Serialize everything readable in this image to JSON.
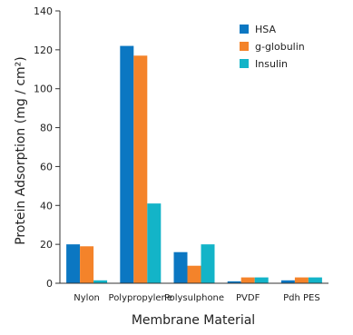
{
  "chart_data": {
    "type": "bar",
    "title": "",
    "xlabel": "Membrane Material",
    "ylabel": "Protein Adsorption (mg / cm²)",
    "ylim": [
      0,
      140
    ],
    "yticks": [
      0,
      20,
      40,
      60,
      80,
      100,
      120,
      140
    ],
    "categories": [
      "Nylon",
      "Polypropylene",
      "Polysulphone",
      "PVDF",
      "Pdh PES"
    ],
    "series": [
      {
        "name": "HSA",
        "color": "#0b77c2",
        "values": [
          20,
          122,
          16,
          1,
          1.5
        ]
      },
      {
        "name": "g-globulin",
        "color": "#f4832a",
        "values": [
          19,
          117,
          9,
          3,
          3
        ]
      },
      {
        "name": "Insulin",
        "color": "#13b4c8",
        "values": [
          1.5,
          41,
          20,
          3,
          3
        ]
      }
    ],
    "grid": false,
    "legend_position": "top-right"
  }
}
